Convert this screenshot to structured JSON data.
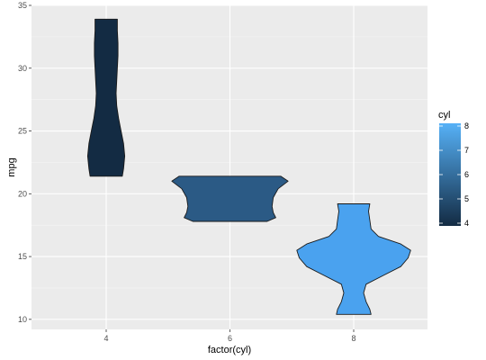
{
  "chart_data": {
    "type": "violin",
    "xlabel": "factor(cyl)",
    "ylabel": "mpg",
    "ylim": [
      9.2,
      35.0
    ],
    "y_ticks": [
      10,
      15,
      20,
      25,
      30,
      35
    ],
    "categories": [
      "4",
      "6",
      "8"
    ],
    "grid": true,
    "legend_position": "right",
    "legend": {
      "title": "cyl",
      "min": 4,
      "max": 8,
      "ticks": [
        4,
        5,
        6,
        7,
        8
      ],
      "low_color": "#132b43",
      "high_color": "#56b1f7"
    },
    "violins": [
      {
        "category": "4",
        "cyl": 4,
        "fill": "#132b43",
        "profile": [
          {
            "y": 21.4,
            "half_width": 0.13
          },
          {
            "y": 22.0,
            "half_width": 0.14
          },
          {
            "y": 23.0,
            "half_width": 0.15
          },
          {
            "y": 24.0,
            "half_width": 0.14
          },
          {
            "y": 25.0,
            "half_width": 0.12
          },
          {
            "y": 26.0,
            "half_width": 0.1
          },
          {
            "y": 27.0,
            "half_width": 0.085
          },
          {
            "y": 28.0,
            "half_width": 0.08
          },
          {
            "y": 29.0,
            "half_width": 0.085
          },
          {
            "y": 30.0,
            "half_width": 0.09
          },
          {
            "y": 31.0,
            "half_width": 0.095
          },
          {
            "y": 32.0,
            "half_width": 0.095
          },
          {
            "y": 33.0,
            "half_width": 0.09
          },
          {
            "y": 33.9,
            "half_width": 0.09
          }
        ]
      },
      {
        "category": "6",
        "cyl": 6,
        "fill": "#2b5a85",
        "profile": [
          {
            "y": 17.8,
            "half_width": 0.3
          },
          {
            "y": 18.1,
            "half_width": 0.37
          },
          {
            "y": 18.5,
            "half_width": 0.35
          },
          {
            "y": 19.0,
            "half_width": 0.34
          },
          {
            "y": 19.7,
            "half_width": 0.35
          },
          {
            "y": 20.4,
            "half_width": 0.39
          },
          {
            "y": 21.0,
            "half_width": 0.47
          },
          {
            "y": 21.4,
            "half_width": 0.41
          }
        ]
      },
      {
        "category": "8",
        "cyl": 8,
        "fill": "#4aa2ef",
        "profile": [
          {
            "y": 10.4,
            "half_width": 0.14
          },
          {
            "y": 10.8,
            "half_width": 0.13
          },
          {
            "y": 11.4,
            "half_width": 0.1
          },
          {
            "y": 12.1,
            "half_width": 0.08
          },
          {
            "y": 12.8,
            "half_width": 0.1
          },
          {
            "y": 13.5,
            "half_width": 0.24
          },
          {
            "y": 14.2,
            "half_width": 0.38
          },
          {
            "y": 14.9,
            "half_width": 0.44
          },
          {
            "y": 15.5,
            "half_width": 0.46
          },
          {
            "y": 16.0,
            "half_width": 0.38
          },
          {
            "y": 16.6,
            "half_width": 0.2
          },
          {
            "y": 17.2,
            "half_width": 0.14
          },
          {
            "y": 17.9,
            "half_width": 0.13
          },
          {
            "y": 18.6,
            "half_width": 0.12
          },
          {
            "y": 19.2,
            "half_width": 0.13
          }
        ]
      }
    ]
  }
}
